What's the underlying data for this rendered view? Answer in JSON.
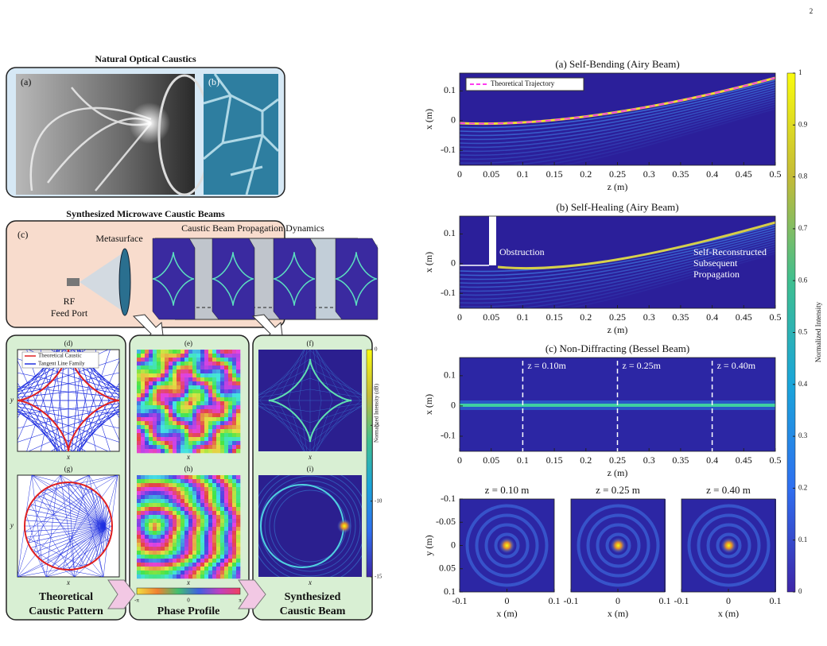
{
  "page_number": "2",
  "figure": {
    "natural_title": "Natural Optical Caustics",
    "synth_title": "Synthesized Microwave Caustic Beams",
    "labels": {
      "a": "(a)",
      "b": "(b)",
      "c": "(c)",
      "d": "(d)",
      "e": "(e)",
      "f": "(f)",
      "g": "(g)",
      "h": "(h)",
      "i": "(i)"
    },
    "metasurface": "Metasurface",
    "propagation": "Caustic Beam Propagation Dynamics",
    "feed": [
      "RF",
      "Feed Port"
    ],
    "legend_d": [
      "Theoretical Caustic",
      "Tangent Line Family"
    ],
    "axis_x": "x",
    "axis_y": "y",
    "captions": [
      [
        "Theoretical",
        "Caustic Pattern"
      ],
      [
        "Phase Profile"
      ],
      [
        "Synthesized",
        "Caustic Beam"
      ]
    ],
    "phase_ticks": [
      "-π",
      "0",
      "π"
    ],
    "db_colorbar": {
      "label": "Normalized Intensity (dB)",
      "lim": [
        -15,
        0
      ],
      "ticks": [
        0,
        -5,
        -10,
        -15
      ]
    }
  },
  "plots": [
    {
      "title": "(a) Self-Bending (Airy Beam)",
      "xlabel": "z (m)",
      "ylabel": "x (m)",
      "xlim": [
        0,
        0.5
      ],
      "ylim": [
        -0.15,
        0.16
      ],
      "xticks": [
        0,
        0.05,
        0.1,
        0.15,
        0.2,
        0.25,
        0.3,
        0.35,
        0.4,
        0.45,
        0.5
      ],
      "yticks": [
        -0.1,
        0,
        0.1
      ],
      "legend": "Theoretical Trajectory"
    },
    {
      "title": "(b) Self-Healing (Airy Beam)",
      "xlabel": "z (m)",
      "ylabel": "x (m)",
      "xlim": [
        0,
        0.5
      ],
      "ylim": [
        -0.15,
        0.16
      ],
      "xticks": [
        0,
        0.05,
        0.1,
        0.15,
        0.2,
        0.25,
        0.3,
        0.35,
        0.4,
        0.45,
        0.5
      ],
      "yticks": [
        -0.1,
        0,
        0.1
      ],
      "annotations": [
        "Obstruction",
        "Self-Reconstructed",
        "Subsequent",
        "Propagation"
      ]
    },
    {
      "title": "(c) Non-Diffracting (Bessel Beam)",
      "xlabel": "z (m)",
      "ylabel": "x (m)",
      "xlim": [
        0,
        0.5
      ],
      "ylim": [
        -0.15,
        0.16
      ],
      "xticks": [
        0,
        0.05,
        0.1,
        0.15,
        0.2,
        0.25,
        0.3,
        0.35,
        0.4,
        0.45,
        0.5
      ],
      "yticks": [
        -0.1,
        0,
        0.1
      ],
      "markers": [
        0.1,
        0.25,
        0.4
      ],
      "marker_labels": [
        "z = 0.10m",
        "z = 0.25m",
        "z = 0.40m"
      ]
    },
    {
      "title": "z = 0.10 m",
      "xlabel": "x (m)",
      "ylabel": "y (m)",
      "xlim": [
        -0.1,
        0.1
      ],
      "ylim": [
        -0.1,
        0.1
      ],
      "y_reversed": true,
      "xticks": [
        -0.1,
        0,
        0.1
      ],
      "yticks": [
        -0.1,
        -0.05,
        0,
        0.05,
        0.1
      ]
    },
    {
      "title": "z = 0.25 m",
      "xlabel": "x (m)",
      "xlim": [
        -0.1,
        0.1
      ],
      "ylim": [
        -0.1,
        0.1
      ],
      "y_reversed": true,
      "xticks": [
        -0.1,
        0,
        0.1
      ]
    },
    {
      "title": "z = 0.40 m",
      "xlabel": "x (m)",
      "xlim": [
        -0.1,
        0.1
      ],
      "ylim": [
        -0.1,
        0.1
      ],
      "y_reversed": true,
      "xticks": [
        -0.1,
        0,
        0.1
      ]
    }
  ],
  "colorbar": {
    "label": "Normalized Intensity",
    "lim": [
      0,
      1
    ],
    "ticks": [
      0,
      0.1,
      0.2,
      0.3,
      0.4,
      0.5,
      0.6,
      0.7,
      0.8,
      0.9,
      1
    ]
  }
}
